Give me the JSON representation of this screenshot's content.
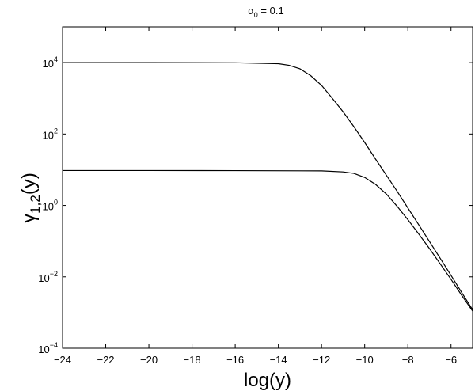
{
  "chart_data": {
    "type": "line",
    "title": {
      "greek": "α",
      "sub": "0",
      "rest": " = 0.1"
    },
    "xlabel": "log(y)",
    "ylabel": {
      "greek": "γ",
      "sub": "1,2",
      "rest": "(y)"
    },
    "xlim": [
      -24,
      -5
    ],
    "ylim": [
      0.0001,
      100000
    ],
    "yscale": "log",
    "grid": false,
    "xticks": [
      -24,
      -22,
      -20,
      -18,
      -16,
      -14,
      -12,
      -10,
      -8,
      -6
    ],
    "yticks": [
      {
        "value": 0.0001,
        "base": "10",
        "exp": "−4"
      },
      {
        "value": 0.01,
        "base": "10",
        "exp": "−2"
      },
      {
        "value": 1,
        "base": "10",
        "exp": "0"
      },
      {
        "value": 100,
        "base": "10",
        "exp": "2"
      },
      {
        "value": 10000,
        "base": "10",
        "exp": "4"
      }
    ],
    "series": [
      {
        "color": "#000000",
        "x": [
          -24,
          -20,
          -16,
          -14,
          -13.5,
          -13,
          -12.5,
          -12,
          -11.5,
          -11,
          -10.5,
          -10,
          -9.5,
          -9,
          -8.5,
          -8,
          -7.5,
          -7,
          -6.5,
          -6,
          -5.5,
          -5
        ],
        "y": [
          10000,
          10000,
          9900,
          9300,
          8400,
          6700,
          4300,
          2300,
          1000,
          420,
          160,
          58,
          20,
          7.1,
          2.5,
          0.85,
          0.29,
          0.098,
          0.033,
          0.011,
          0.0036,
          0.0012
        ]
      },
      {
        "color": "#000000",
        "x": [
          -24,
          -20,
          -16,
          -12,
          -11,
          -10.5,
          -10,
          -9.5,
          -9,
          -8.5,
          -8,
          -7.5,
          -7,
          -6.5,
          -6,
          -5.5,
          -5
        ],
        "y": [
          9.5,
          9.5,
          9.45,
          9.3,
          8.7,
          7.9,
          6.1,
          3.9,
          2.1,
          0.95,
          0.4,
          0.16,
          0.062,
          0.023,
          0.0085,
          0.003,
          0.0011
        ]
      }
    ]
  }
}
